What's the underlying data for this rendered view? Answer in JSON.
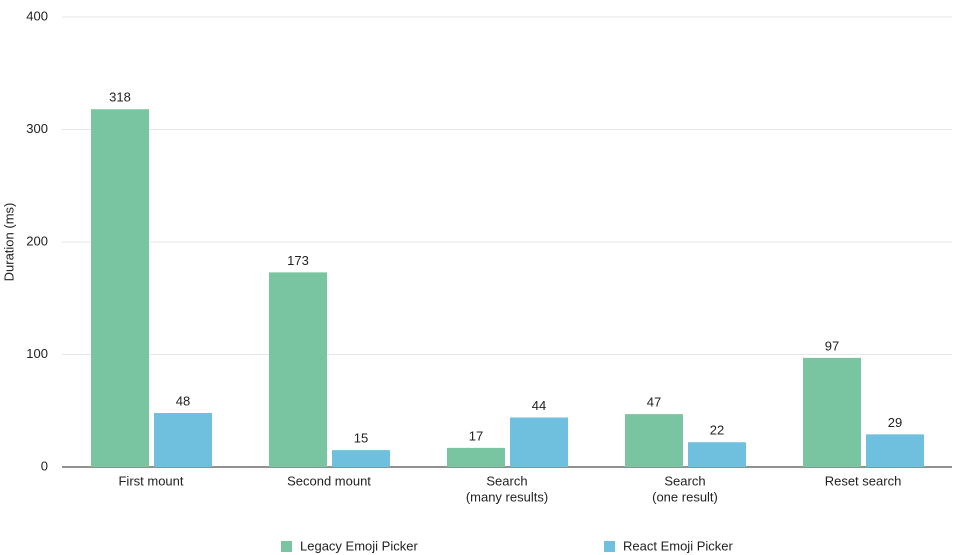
{
  "chart_data": {
    "type": "bar",
    "y_label": "Duration (ms)",
    "categories": [
      [
        "First mount"
      ],
      [
        "Second mount"
      ],
      [
        "Search",
        "(many results)"
      ],
      [
        "Search",
        "(one result)"
      ],
      [
        "Reset search"
      ]
    ],
    "series": [
      {
        "name": "Legacy Emoji Picker",
        "color": "#79c4a1",
        "values": [
          318,
          173,
          17,
          47,
          97
        ]
      },
      {
        "name": "React Emoji Picker",
        "color": "#6fbfdf",
        "values": [
          48,
          15,
          44,
          22,
          29
        ]
      }
    ],
    "ylim": [
      0,
      400
    ],
    "yticks": [
      0,
      100,
      200,
      300,
      400
    ],
    "grid": true,
    "legend": "bottom"
  }
}
